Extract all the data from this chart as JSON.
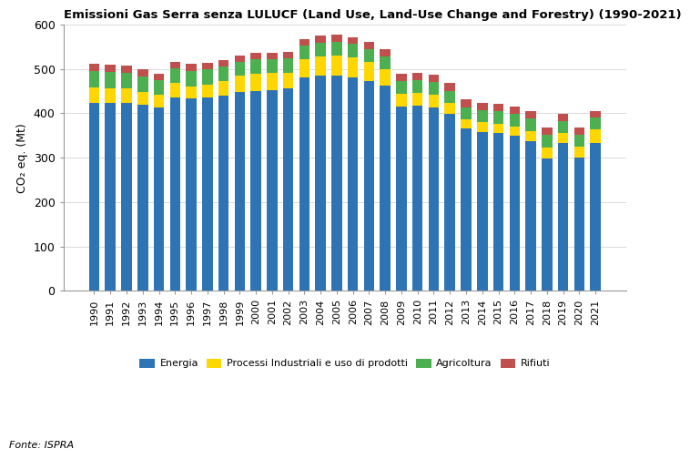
{
  "years": [
    1990,
    1991,
    1992,
    1993,
    1994,
    1995,
    1996,
    1997,
    1998,
    1999,
    2000,
    2001,
    2002,
    2003,
    2004,
    2005,
    2006,
    2007,
    2008,
    2009,
    2010,
    2011,
    2012,
    2013,
    2014,
    2015,
    2016,
    2017,
    2018,
    2019,
    2020,
    2021
  ],
  "energia": [
    424,
    424,
    424,
    419,
    413,
    436,
    433,
    435,
    440,
    449,
    451,
    453,
    457,
    481,
    484,
    484,
    481,
    473,
    462,
    416,
    417,
    414,
    399,
    365,
    357,
    355,
    349,
    338,
    298,
    333,
    300,
    333
  ],
  "processi_industriali": [
    34,
    33,
    32,
    30,
    28,
    32,
    28,
    30,
    32,
    35,
    38,
    38,
    35,
    40,
    45,
    47,
    45,
    43,
    38,
    28,
    30,
    28,
    24,
    22,
    23,
    22,
    22,
    22,
    25,
    22,
    25,
    30
  ],
  "agricoltura": [
    37,
    36,
    35,
    34,
    34,
    33,
    35,
    34,
    33,
    32,
    32,
    31,
    31,
    31,
    30,
    30,
    30,
    29,
    29,
    28,
    28,
    28,
    28,
    27,
    27,
    27,
    28,
    28,
    28,
    27,
    27,
    27
  ],
  "rifiuti": [
    16,
    16,
    16,
    16,
    15,
    15,
    15,
    15,
    15,
    15,
    15,
    15,
    15,
    15,
    16,
    16,
    16,
    16,
    16,
    17,
    17,
    17,
    17,
    17,
    17,
    17,
    17,
    17,
    17,
    17,
    16,
    15
  ],
  "color_energia": "#2E74B5",
  "color_processi": "#FFD700",
  "color_agricoltura": "#4CAF50",
  "color_rifiuti": "#C0504D",
  "title": "Emissioni Gas Serra senza LULUCF (Land Use, Land-Use Change and Forestry) (1990-2021)",
  "ylabel": "CO₂ eq. (Mt)",
  "legend_labels": [
    "Energia",
    "Processi Industriali e uso di prodotti",
    "Agricoltura",
    "Rifiuti"
  ],
  "fonte": "Fonte: ISPRA",
  "ylim": [
    0,
    600
  ],
  "yticks": [
    0,
    100,
    200,
    300,
    400,
    500,
    600
  ]
}
